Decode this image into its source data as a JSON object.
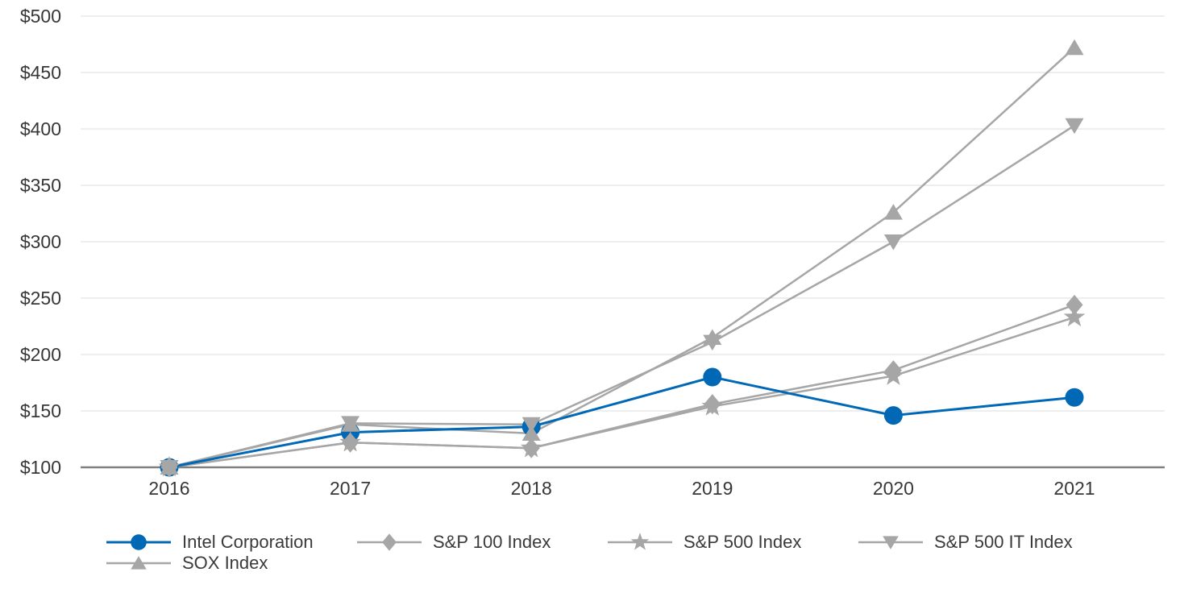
{
  "chart_data": {
    "type": "line",
    "title": "",
    "xlabel": "",
    "ylabel": "",
    "categories": [
      "2016",
      "2017",
      "2018",
      "2019",
      "2020",
      "2021"
    ],
    "ylim": [
      100,
      500
    ],
    "y_tick_step": 50,
    "y_tick_labels": [
      "$100",
      "$150",
      "$200",
      "$250",
      "$300",
      "$350",
      "$400",
      "$450",
      "$500"
    ],
    "grid": true,
    "legend_position": "bottom",
    "series": [
      {
        "name": "Intel Corporation",
        "marker": "circle",
        "color": "#0068b5",
        "values": [
          100,
          131,
          136,
          180,
          146,
          162
        ]
      },
      {
        "name": "S&P 100 Index",
        "marker": "diamond",
        "color": "#a6a6a6",
        "values": [
          100,
          122,
          117,
          156,
          186,
          244
        ]
      },
      {
        "name": "S&P 500 Index",
        "marker": "star",
        "color": "#a6a6a6",
        "values": [
          100,
          122,
          117,
          154,
          181,
          233
        ]
      },
      {
        "name": "S&P 500 IT Index",
        "marker": "triangle-down",
        "color": "#a6a6a6",
        "values": [
          100,
          139,
          138,
          211,
          300,
          403
        ]
      },
      {
        "name": "SOX Index",
        "marker": "triangle-up",
        "color": "#a6a6a6",
        "values": [
          100,
          138,
          130,
          215,
          326,
          472
        ]
      }
    ]
  },
  "colors": {
    "accent_blue": "#0068b5",
    "series_gray": "#a6a6a6",
    "axis_line": "#808080",
    "gridline": "#e8e8e8",
    "label_text": "#373737"
  }
}
